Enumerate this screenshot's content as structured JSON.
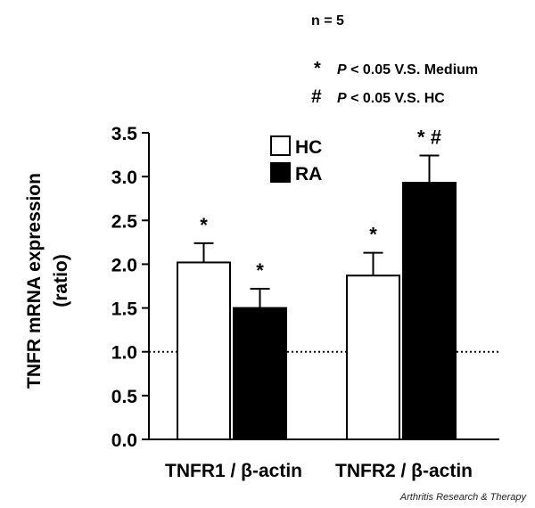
{
  "notes": {
    "n_label": "n = 5",
    "star_symbol": "*",
    "star_p": "P",
    "star_text": " < 0.05 V.S. Medium",
    "hash_symbol": "#",
    "hash_p": "P",
    "hash_text": " < 0.05 V.S. HC"
  },
  "footer": "Arthritis Research & Therapy",
  "chart_data": {
    "type": "bar",
    "title": "",
    "ylabel_line1": "TNFR mRNA expression",
    "ylabel_line2": "(ratio)",
    "xlabel": "",
    "ylim": [
      0,
      3.5
    ],
    "y_ticks": [
      "0.0",
      "0.5",
      "1.0",
      "1.5",
      "2.0",
      "2.5",
      "3.0",
      "3.5"
    ],
    "categories": [
      "TNFR1 / β-actin",
      "TNFR2 / β-actin"
    ],
    "series": [
      {
        "name": "HC",
        "fill": "#ffffff",
        "values": [
          2.02,
          1.87
        ],
        "errors": [
          0.22,
          0.26
        ],
        "annotations": [
          "*",
          "*"
        ]
      },
      {
        "name": "RA",
        "fill": "#000000",
        "values": [
          1.5,
          2.93
        ],
        "errors": [
          0.22,
          0.31
        ],
        "annotations": [
          "*",
          "* #"
        ]
      }
    ],
    "reference_line": {
      "value": 1.0,
      "style": "dotted"
    },
    "legend": {
      "position": "top-center",
      "entries": [
        "HC",
        "RA"
      ]
    },
    "grid": false
  }
}
